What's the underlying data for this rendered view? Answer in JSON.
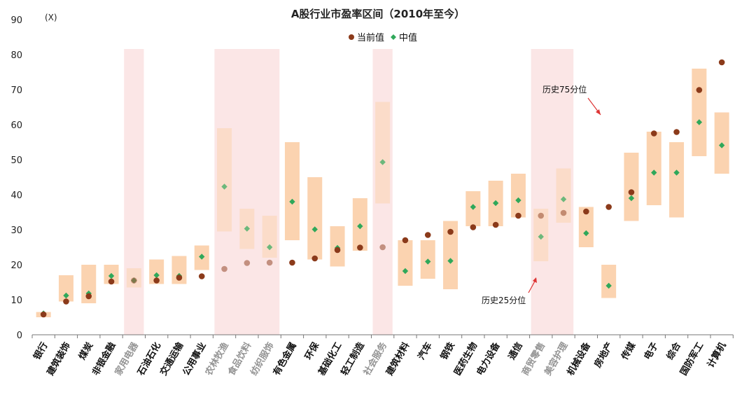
{
  "chart_data": {
    "type": "range-dot",
    "title": "A股行业市盈率区间（2010年至今）",
    "unit_label": "(X)",
    "ylim": [
      0,
      90
    ],
    "yticks": [
      0,
      10,
      20,
      30,
      40,
      50,
      60,
      70,
      80,
      90
    ],
    "legend": {
      "current_label": "当前值",
      "median_label": "中值",
      "position": "top-center"
    },
    "colors": {
      "range_bar": "#fbd3b0",
      "current_dot": "#8b3a1a",
      "median_diamond": "#2fa85a",
      "highlight_band": "#fbe6e6"
    },
    "categories": [
      "银行",
      "建筑装饰",
      "煤炭",
      "非银金融",
      "家用电器",
      "石油石化",
      "交通运输",
      "公用事业",
      "农林牧渔",
      "食品饮料",
      "纺织服饰",
      "有色金属",
      "环保",
      "基础化工",
      "轻工制造",
      "社会服务",
      "建筑材料",
      "汽车",
      "钢铁",
      "医药生物",
      "电力设备",
      "通信",
      "商贸零售",
      "美容护理",
      "机械设备",
      "房地产",
      "传媒",
      "电子",
      "综合",
      "国防军工",
      "计算机"
    ],
    "p25": [
      5.0,
      9.5,
      9.0,
      14.5,
      13.5,
      14.5,
      14.5,
      18.5,
      29.5,
      24.5,
      22.0,
      27.0,
      21.5,
      19.5,
      24.0,
      37.5,
      14.0,
      16.0,
      13.0,
      31.0,
      31.0,
      33.5,
      21.0,
      32.0,
      25.0,
      10.5,
      32.5,
      37.0,
      33.5,
      51.0,
      46.0
    ],
    "p75": [
      6.5,
      17.0,
      20.0,
      20.0,
      19.0,
      21.5,
      22.5,
      25.5,
      59.0,
      36.0,
      34.0,
      55.0,
      45.0,
      31.0,
      39.0,
      66.5,
      27.0,
      27.0,
      32.5,
      41.0,
      44.0,
      46.0,
      36.0,
      47.5,
      36.5,
      20.0,
      52.0,
      58.0,
      55.0,
      76.0,
      63.5
    ],
    "current": [
      5.8,
      9.5,
      11.0,
      15.2,
      15.5,
      15.5,
      16.3,
      16.7,
      18.8,
      20.5,
      20.6,
      20.6,
      21.8,
      24.2,
      24.9,
      25.0,
      27.0,
      28.5,
      29.4,
      30.7,
      31.4,
      34.0,
      34.0,
      34.8,
      35.2,
      36.5,
      40.7,
      57.5,
      57.9,
      69.9,
      77.8
    ],
    "median": [
      6.1,
      11.2,
      11.8,
      16.8,
      15.5,
      17.0,
      16.8,
      22.3,
      42.3,
      30.3,
      25.0,
      38.0,
      30.1,
      24.8,
      31.0,
      49.3,
      18.2,
      20.9,
      21.1,
      36.5,
      37.6,
      38.4,
      28.0,
      38.7,
      29.0,
      14.0,
      39.0,
      46.3,
      46.3,
      60.7,
      54.1
    ],
    "highlight_groups": [
      [
        4,
        4
      ],
      [
        8,
        10
      ],
      [
        15,
        15
      ],
      [
        22,
        23
      ]
    ],
    "annotations": {
      "p75_label": "历史75分位",
      "p25_label": "历史25分位"
    }
  }
}
